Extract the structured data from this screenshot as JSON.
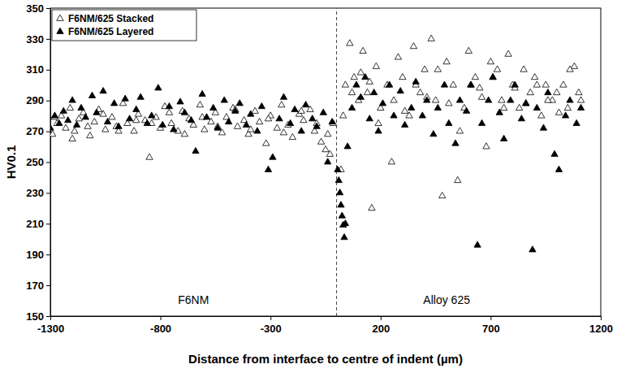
{
  "chart_data": {
    "type": "scatter",
    "x_label": "Distance from interface to centre of indent (µm)",
    "y_label": "HV0.1",
    "xlim": [
      -1300,
      1200
    ],
    "xticks": [
      -1300,
      -800,
      -300,
      200,
      700,
      1200
    ],
    "ylim": [
      150,
      350
    ],
    "yticks": [
      150,
      170,
      190,
      210,
      230,
      250,
      270,
      290,
      310,
      330,
      350
    ],
    "grid": false,
    "legend": "upper left",
    "vline": {
      "x": 0,
      "line_style": "dashed"
    },
    "annotations": [
      {
        "text": "F6NM",
        "x": -650,
        "y": 158
      },
      {
        "text": "Alloy 625",
        "x": 500,
        "y": 158
      }
    ],
    "series": [
      {
        "name": "F6NM/625 Stacked",
        "color": "#000000",
        "marker": "triangle-open",
        "x": [
          -1290,
          -1270,
          -1250,
          -1230,
          -1210,
          -1190,
          -1170,
          -1150,
          -1120,
          -1100,
          -1080,
          -1050,
          -1020,
          -1000,
          -970,
          -950,
          -920,
          -900,
          -870,
          -850,
          -820,
          -800,
          -780,
          -750,
          -720,
          -700,
          -670,
          -650,
          -620,
          -600,
          -570,
          -550,
          -520,
          -500,
          -470,
          -450,
          -420,
          -400,
          -370,
          -350,
          -320,
          -300,
          -270,
          -250,
          -220,
          -200,
          -170,
          -150,
          -120,
          -100,
          -70,
          -50,
          -30,
          -15,
          20,
          40,
          60,
          80,
          100,
          120,
          140,
          160,
          180,
          200,
          230,
          250,
          280,
          300,
          330,
          350,
          380,
          400,
          430,
          450,
          480,
          500,
          530,
          550,
          580,
          600,
          630,
          650,
          680,
          700,
          730,
          750,
          780,
          800,
          830,
          850,
          880,
          900,
          930,
          950,
          980,
          1000,
          1030,
          1050,
          1080,
          1100,
          30,
          70,
          110,
          150,
          190,
          260,
          310,
          360,
          410,
          460,
          510,
          560,
          610,
          660,
          710,
          760,
          810,
          860,
          910,
          960,
          1010,
          1060,
          1110,
          -1280,
          -1200,
          -1130,
          -1060,
          -990,
          -910,
          -840,
          -760,
          -690,
          -610,
          -540,
          -460,
          -390,
          -310,
          -240,
          -160,
          -90,
          -40
        ],
        "values": [
          268,
          275,
          280,
          272,
          285,
          270,
          278,
          282,
          267,
          276,
          284,
          271,
          279,
          273,
          288,
          275,
          270,
          281,
          277,
          253,
          279,
          272,
          286,
          275,
          270,
          283,
          278,
          274,
          287,
          271,
          276,
          282,
          269,
          279,
          285,
          273,
          277,
          268,
          283,
          276,
          262,
          280,
          272,
          287,
          274,
          266,
          281,
          277,
          284,
          270,
          263,
          258,
          255,
          275,
          245,
          300,
          327,
          305,
          290,
          322,
          295,
          220,
          312,
          285,
          300,
          250,
          318,
          305,
          280,
          325,
          295,
          310,
          330,
          290,
          228,
          315,
          300,
          238,
          285,
          322,
          305,
          298,
          260,
          315,
          310,
          290,
          320,
          300,
          285,
          310,
          295,
          305,
          280,
          300,
          290,
          295,
          300,
          285,
          312,
          295,
          280,
          295,
          308,
          302,
          275,
          290,
          283,
          300,
          292,
          310,
          288,
          270,
          300,
          292,
          305,
          285,
          298,
          288,
          300,
          290,
          282,
          310,
          290,
          279,
          265,
          273,
          281,
          270,
          277,
          275,
          282,
          268,
          279,
          273,
          284,
          271,
          278,
          269,
          283,
          275,
          268
        ]
      },
      {
        "name": "F6NM/625 Layered",
        "color": "#000000",
        "marker": "triangle",
        "x": [
          -1300,
          -1280,
          -1260,
          -1240,
          -1220,
          -1200,
          -1180,
          -1160,
          -1140,
          -1110,
          -1090,
          -1060,
          -1040,
          -1010,
          -990,
          -960,
          -940,
          -910,
          -890,
          -860,
          -840,
          -810,
          -790,
          -760,
          -740,
          -710,
          -690,
          -660,
          -640,
          -610,
          -590,
          -560,
          -540,
          -510,
          -490,
          -460,
          -440,
          -410,
          -390,
          -360,
          -340,
          -310,
          -290,
          -260,
          -240,
          -210,
          -190,
          -160,
          -140,
          -110,
          -90,
          -60,
          -40,
          -20,
          5,
          10,
          15,
          20,
          25,
          30,
          35,
          40,
          50,
          70,
          90,
          110,
          130,
          150,
          170,
          190,
          210,
          240,
          260,
          290,
          310,
          340,
          360,
          390,
          410,
          440,
          460,
          490,
          510,
          540,
          560,
          590,
          610,
          640,
          660,
          690,
          710,
          740,
          760,
          790,
          810,
          840,
          860,
          890,
          910,
          940,
          960,
          990,
          1010,
          1040,
          1060,
          1090,
          1110
        ],
        "values": [
          272,
          280,
          275,
          283,
          277,
          290,
          274,
          285,
          279,
          293,
          282,
          296,
          276,
          288,
          273,
          291,
          278,
          284,
          292,
          275,
          280,
          298,
          274,
          286,
          271,
          289,
          282,
          277,
          257,
          294,
          279,
          285,
          272,
          290,
          276,
          283,
          288,
          274,
          281,
          270,
          286,
          245,
          253,
          278,
          292,
          275,
          284,
          270,
          287,
          278,
          273,
          282,
          250,
          276,
          245,
          238,
          230,
          222,
          215,
          209,
          201,
          210,
          260,
          285,
          300,
          292,
          305,
          278,
          295,
          270,
          288,
          300,
          280,
          296,
          274,
          285,
          302,
          280,
          290,
          268,
          285,
          300,
          275,
          262,
          290,
          283,
          300,
          196,
          275,
          290,
          305,
          282,
          265,
          290,
          300,
          278,
          288,
          193,
          285,
          272,
          295,
          255,
          245,
          280,
          290,
          275,
          285
        ]
      }
    ]
  }
}
